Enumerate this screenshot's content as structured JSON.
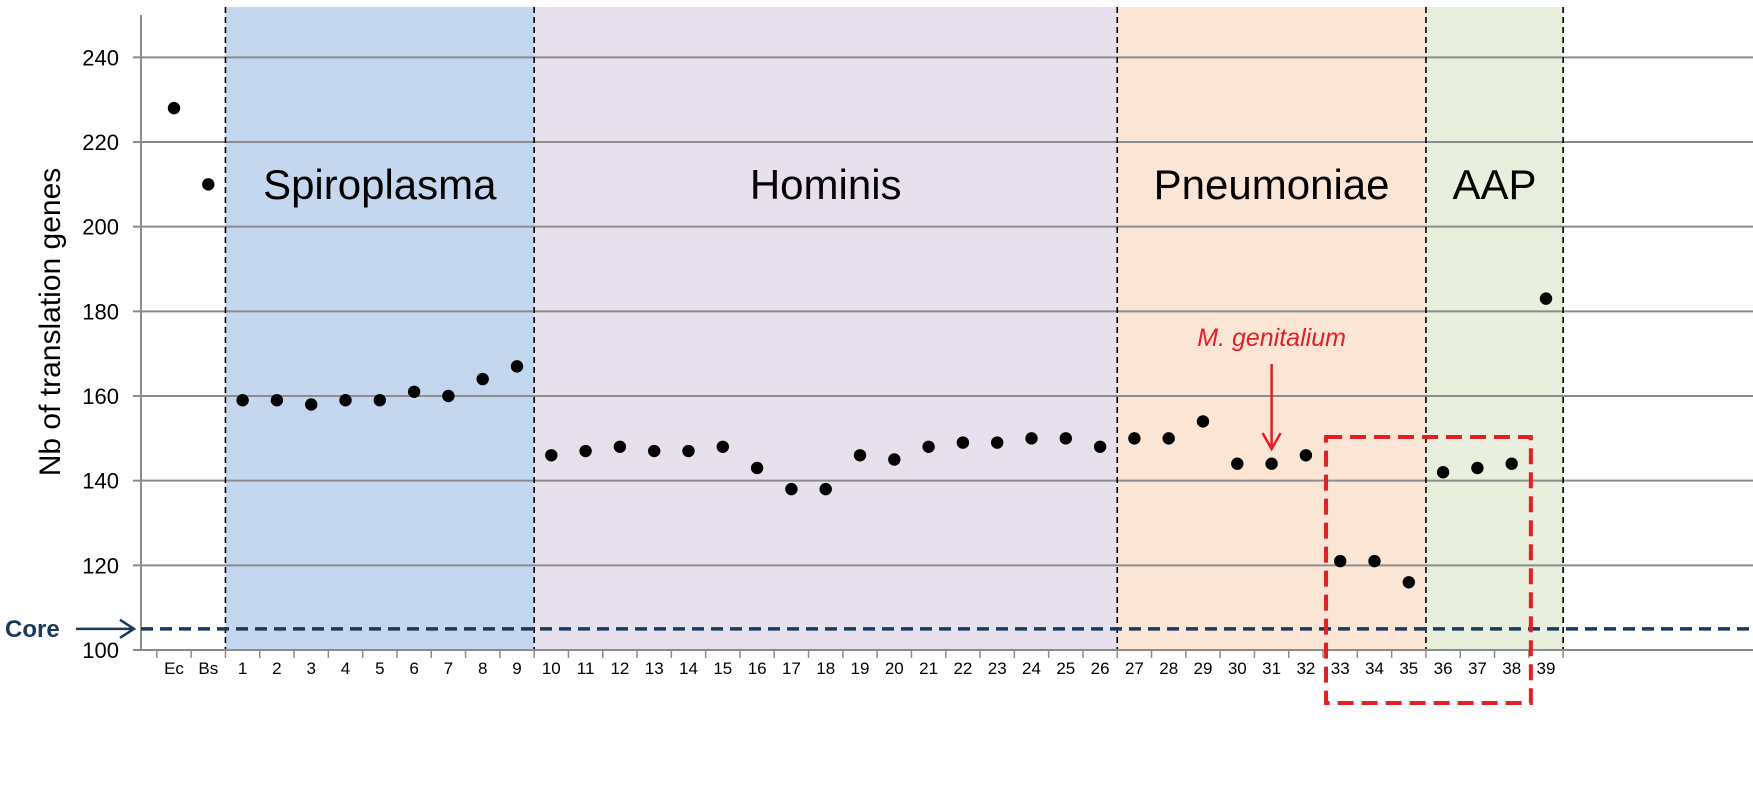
{
  "chart_data": {
    "type": "scatter",
    "ylabel": "Nb of translation genes",
    "ylim": [
      100,
      250
    ],
    "yticks": [
      100,
      120,
      140,
      160,
      180,
      200,
      220,
      240
    ],
    "grid": true,
    "categories": [
      "Ec",
      "Bs",
      "1",
      "2",
      "3",
      "4",
      "5",
      "6",
      "7",
      "8",
      "9",
      "10",
      "11",
      "12",
      "13",
      "14",
      "15",
      "16",
      "17",
      "18",
      "19",
      "20",
      "21",
      "22",
      "23",
      "24",
      "25",
      "26",
      "27",
      "28",
      "29",
      "30",
      "31",
      "32",
      "33",
      "34",
      "35",
      "36",
      "37",
      "38",
      "39"
    ],
    "values": [
      228,
      210,
      159,
      159,
      158,
      159,
      159,
      161,
      160,
      164,
      167,
      146,
      147,
      148,
      147,
      147,
      148,
      143,
      138,
      138,
      146,
      145,
      148,
      149,
      149,
      150,
      150,
      148,
      150,
      150,
      154,
      144,
      144,
      146,
      121,
      121,
      116,
      142,
      143,
      144,
      183
    ],
    "groups": [
      {
        "label": "Spiroplasma",
        "from": "1",
        "to": "9",
        "color": "#c5d7ee"
      },
      {
        "label": "Hominis",
        "from": "10",
        "to": "26",
        "color": "#e6e1ed"
      },
      {
        "label": "Pneumoniae",
        "from": "27",
        "to": "35",
        "color": "#fbe6d6"
      },
      {
        "label": "AAP",
        "from": "36",
        "to": "39",
        "color": "#e8f0dd"
      }
    ],
    "reference_line": {
      "label": "Core",
      "value": 105,
      "color": "#1a3a5c"
    },
    "annotation": {
      "text": "M. genitalium",
      "target": "31",
      "color": "#e31e24"
    },
    "highlight_box": {
      "from": "33",
      "to": "38",
      "color": "#e31e24"
    }
  }
}
